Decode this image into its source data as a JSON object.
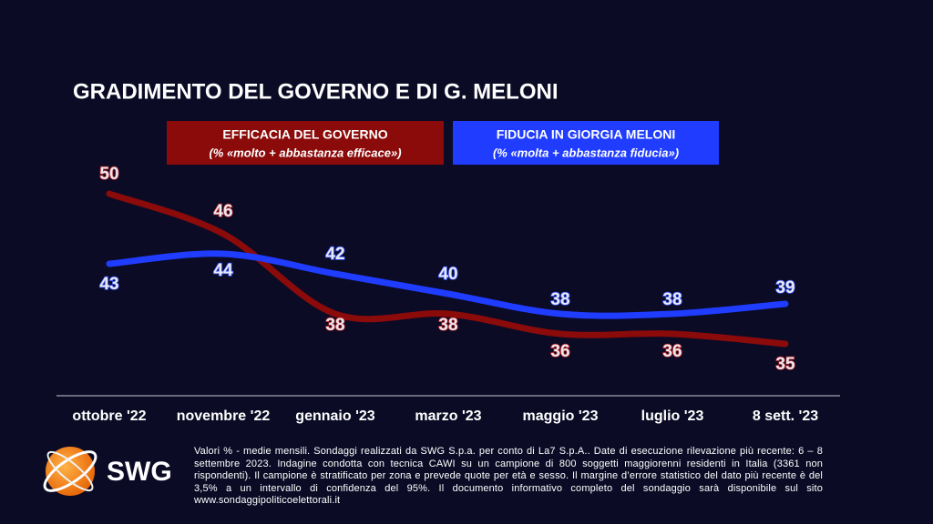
{
  "chart_data": {
    "type": "line",
    "title": "GRADIMENTO DEL GOVERNO E DI G. MELONI",
    "categories": [
      "ottobre '22",
      "novembre '22",
      "gennaio '23",
      "marzo '23",
      "maggio '23",
      "luglio '23",
      "8 sett. '23"
    ],
    "series": [
      {
        "name": "EFFICACIA DEL GOVERNO",
        "subtitle": "(% «molto + abbastanza efficace»)",
        "color": "#8b0a0a",
        "values": [
          50,
          46,
          38,
          38,
          36,
          36,
          35
        ]
      },
      {
        "name": "FIDUCIA IN GIORGIA MELONI",
        "subtitle": "(% «molta + abbastanza fiducia»)",
        "color": "#1f3cff",
        "values": [
          43,
          44,
          42,
          40,
          38,
          38,
          39
        ]
      }
    ],
    "grid": false
  },
  "logo": "SWG",
  "note": "Valori % - medie mensili. Sondaggi realizzati da SWG S.p.a. per conto di La7 S.p.A.. Date di esecuzione rilevazione più recente: 6 – 8 settembre 2023. Indagine condotta con tecnica CAWI su un campione di 800 soggetti maggiorenni residenti in Italia (3361 non rispondenti). Il campione è stratificato per zona e prevede quote per età e sesso. Il margine d’errore statistico del dato più recente è del 3,5% a un intervallo di confidenza del 95%. Il documento informativo completo del sondaggio sarà disponibile sul sito www.sondaggipoliticoelettorali.it"
}
